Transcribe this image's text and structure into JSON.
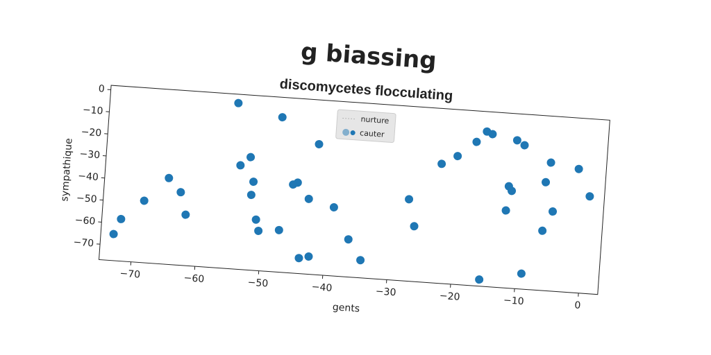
{
  "chart_data": {
    "type": "scatter",
    "title": "g biassing",
    "subtitle": "discomycetes flocculating",
    "x_label": "gents",
    "y_label": "sympathique",
    "xlim": [
      -75,
      3
    ],
    "ylim": [
      -77,
      2
    ],
    "xticks": [
      {
        "value": -70,
        "label": "−70"
      },
      {
        "value": -60,
        "label": "−60"
      },
      {
        "value": -50,
        "label": "−50"
      },
      {
        "value": -40,
        "label": "−40"
      },
      {
        "value": -30,
        "label": "−30"
      },
      {
        "value": -20,
        "label": "−20"
      },
      {
        "value": -10,
        "label": "−10"
      },
      0
    ],
    "yticks": [
      0,
      {
        "value": -10,
        "label": "−10"
      },
      {
        "value": -20,
        "label": "−20"
      },
      {
        "value": -30,
        "label": "−30"
      },
      {
        "value": -40,
        "label": "−40"
      },
      {
        "value": -50,
        "label": "−50"
      },
      {
        "value": -60,
        "label": "−60"
      },
      {
        "value": -70,
        "label": "−70"
      }
    ],
    "legend": "upper center",
    "series": [
      {
        "name": "nurture",
        "color": "#888888",
        "x": [],
        "values": []
      },
      {
        "name": "cauter",
        "color": "#1f77b4",
        "x": [
          -55,
          -48,
          -54,
          -52.5,
          -65,
          -63,
          -62,
          -68.6,
          -72,
          -73,
          -51.8,
          -52,
          -51,
          -50.5,
          -47.3,
          -42,
          -44.9,
          -45.6,
          -43,
          -39,
          -43.9,
          -42.4,
          -36.4,
          -34.3,
          -33.4,
          -27.4,
          -26.3,
          -22.7,
          -20.3,
          -17.5,
          -16,
          -15.1,
          -15.6,
          -11.2,
          -10,
          -12,
          -11.5,
          -12.2,
          -9.1,
          -5.7,
          -6.3,
          -4.9,
          -6.3,
          -1.3,
          0.7
        ],
        "values": [
          -2,
          -7,
          -30,
          -26,
          -38,
          -44,
          -54,
          -49,
          -58,
          -65,
          -37,
          -43,
          -54,
          -59,
          -58,
          -18,
          -36,
          -37,
          -43,
          -46,
          -70,
          -69,
          -60,
          -69,
          -11,
          -40,
          -52,
          -23,
          -19,
          -12,
          -7,
          -8,
          -74,
          -10,
          -12,
          -31,
          -33,
          -42,
          -70,
          -19,
          -28,
          -41,
          -50,
          -21,
          -33
        ]
      }
    ]
  }
}
